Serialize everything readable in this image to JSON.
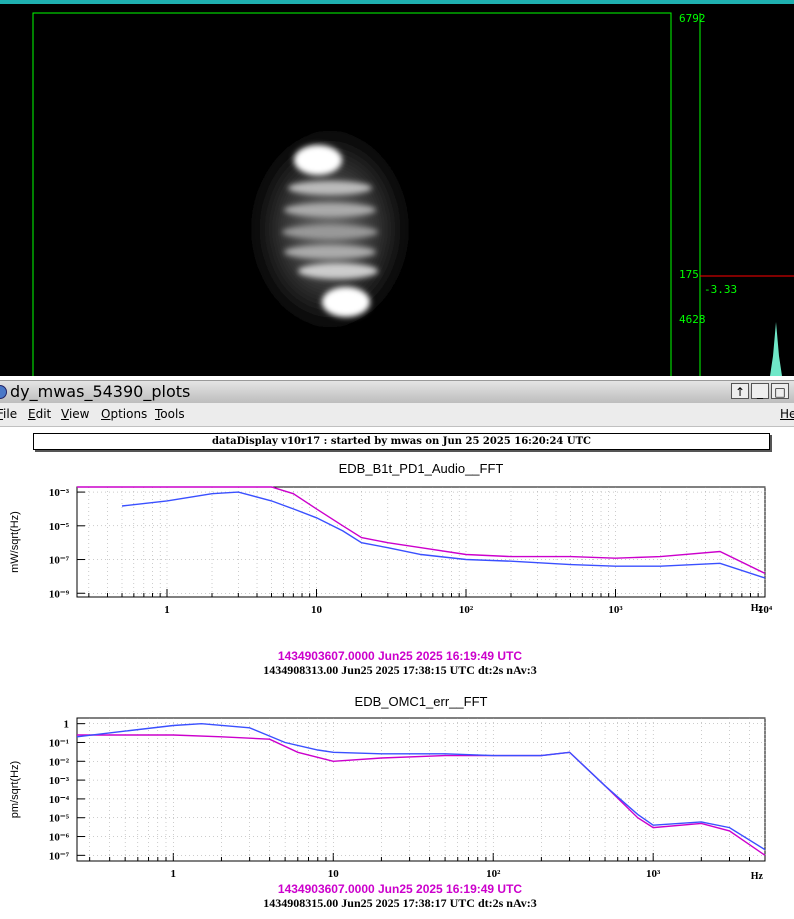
{
  "camera": {
    "labels": {
      "top": "6792",
      "mid": "175",
      "cursor": "-3.33",
      "bottom": "4628"
    }
  },
  "window": {
    "title": "dy_mwas_54390_plots",
    "buttons": [
      "↑",
      "_",
      "□"
    ]
  },
  "menu": {
    "items": [
      {
        "pre": "",
        "u": "F",
        "post": "ile"
      },
      {
        "pre": "",
        "u": "E",
        "post": "dit"
      },
      {
        "pre": "",
        "u": "V",
        "post": "iew"
      },
      {
        "pre": "",
        "u": "O",
        "post": "ptions"
      },
      {
        "pre": "",
        "u": "T",
        "post": "ools"
      }
    ],
    "help": "He"
  },
  "status": "dataDisplay v10r17 : started by mwas on Jun 25 2025 16:20:24 UTC",
  "colors": {
    "ref": "#cc00cc",
    "live": "#3a50ff",
    "green": "#00ff00",
    "teal": "#1fb0b0"
  },
  "chart_data": [
    {
      "type": "line",
      "title": "EDB_B1t_PD1_Audio__FFT",
      "ylabel": "mW/sqrt(Hz)",
      "xlabel": "Hz",
      "xscale": "log",
      "yscale": "log",
      "xlim": [
        0.25,
        10000
      ],
      "ylim": [
        6e-10,
        0.002
      ],
      "xticks": [
        "1",
        "10",
        "10²",
        "10³",
        "10⁴"
      ],
      "yticks": [
        "10⁻³",
        "10⁻⁵",
        "10⁻⁷",
        "10⁻⁹"
      ],
      "ref_time": "1434903607.0000 Jun25 2025 16:19:49 UTC",
      "live_time": "1434908313.00 Jun25 2025 17:38:15 UTC dt:2s nAv:3",
      "series": [
        {
          "color": "#cc00cc",
          "x": [
            0.25,
            0.5,
            1,
            2,
            3,
            5,
            7,
            10,
            15,
            20,
            30,
            50,
            100,
            200,
            500,
            1000,
            2000,
            5000,
            10000
          ],
          "y": [
            0.002,
            0.002,
            0.002,
            0.002,
            0.002,
            0.002,
            0.0008,
            0.0001,
            1e-05,
            2e-06,
            1e-06,
            5e-07,
            2e-07,
            1.5e-07,
            1.5e-07,
            1.2e-07,
            1.5e-07,
            3e-07,
            1.5e-08
          ]
        },
        {
          "color": "#3a50ff",
          "x": [
            0.5,
            1,
            2,
            3,
            5,
            7,
            10,
            15,
            20,
            30,
            50,
            100,
            200,
            500,
            1000,
            2000,
            5000,
            10000
          ],
          "y": [
            0.00015,
            0.0003,
            0.0008,
            0.001,
            0.0003,
            0.0001,
            3e-05,
            5e-06,
            1e-06,
            5e-07,
            2e-07,
            1e-07,
            8e-08,
            5e-08,
            4e-08,
            4e-08,
            6e-08,
            8e-09
          ]
        }
      ]
    },
    {
      "type": "line",
      "title": "EDB_OMC1_err__FFT",
      "ylabel": "pm/sqrt(Hz)",
      "xlabel": "Hz",
      "xscale": "log",
      "yscale": "log",
      "xlim": [
        0.25,
        5000
      ],
      "ylim": [
        5e-08,
        2
      ],
      "xticks": [
        "1",
        "10",
        "10²",
        "10³"
      ],
      "yticks": [
        "1",
        "10⁻¹",
        "10⁻²",
        "10⁻³",
        "10⁻⁴",
        "10⁻⁵",
        "10⁻⁶",
        "10⁻⁷"
      ],
      "ref_time": "1434903607.0000 Jun25 2025 16:19:49 UTC",
      "live_time": "1434908315.00 Jun25 2025 17:38:17 UTC dt:2s nAv:3",
      "series": [
        {
          "color": "#cc00cc",
          "x": [
            0.25,
            1,
            2,
            4,
            6,
            10,
            20,
            50,
            100,
            200,
            300,
            500,
            800,
            1000,
            2000,
            3000,
            5000
          ],
          "y": [
            0.25,
            0.25,
            0.2,
            0.15,
            0.03,
            0.01,
            0.015,
            0.02,
            0.02,
            0.02,
            0.03,
            0.0005,
            1e-05,
            3e-06,
            5e-06,
            2e-06,
            1e-07
          ]
        },
        {
          "color": "#3a50ff",
          "x": [
            0.25,
            0.5,
            1,
            1.5,
            3,
            5,
            8,
            10,
            20,
            50,
            100,
            200,
            300,
            500,
            800,
            1000,
            2000,
            3000,
            5000
          ],
          "y": [
            0.2,
            0.4,
            0.8,
            1.0,
            0.6,
            0.1,
            0.04,
            0.03,
            0.025,
            0.025,
            0.02,
            0.02,
            0.03,
            0.0005,
            1.5e-05,
            4e-06,
            6e-06,
            3e-06,
            2e-07
          ]
        }
      ]
    }
  ]
}
